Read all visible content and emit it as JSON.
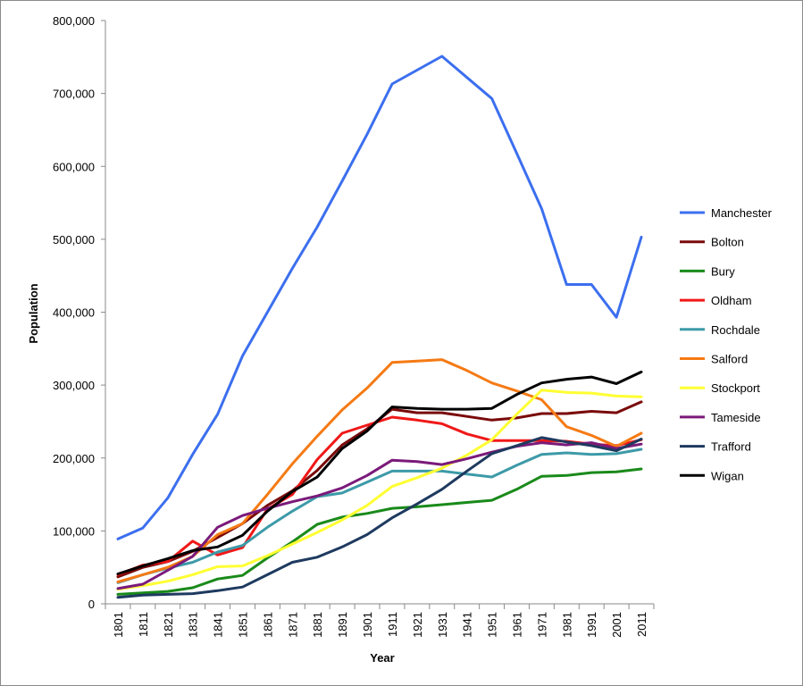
{
  "chart_data": {
    "type": "line",
    "title": "",
    "xlabel": "Year",
    "ylabel": "Population",
    "ylim": [
      0,
      800000
    ],
    "yticks": [
      0,
      100000,
      200000,
      300000,
      400000,
      500000,
      600000,
      700000,
      800000
    ],
    "ytick_labels": [
      "0",
      "100,000",
      "200,000",
      "300,000",
      "400,000",
      "500,000",
      "600,000",
      "700,000",
      "800,000"
    ],
    "grid": false,
    "legend_position": "right",
    "x": [
      "1801",
      "1811",
      "1821",
      "1831",
      "1841",
      "1851",
      "1861",
      "1871",
      "1881",
      "1891",
      "1901",
      "1911",
      "1921",
      "1931",
      "1941",
      "1951",
      "1961",
      "1971",
      "1981",
      "1991",
      "2001",
      "2011"
    ],
    "series": [
      {
        "name": "Manchester",
        "color": "#3c6fef",
        "values": [
          89000,
          104000,
          145000,
          205000,
          260000,
          340000,
          400000,
          460000,
          517000,
          580000,
          644000,
          713000,
          732000,
          751000,
          722000,
          693000,
          618000,
          542000,
          438000,
          438000,
          393000,
          503000
        ]
      },
      {
        "name": "Bolton",
        "color": "#7a0a0a",
        "values": [
          37000,
          50000,
          58000,
          72000,
          91000,
          110000,
          135000,
          155000,
          183000,
          218000,
          240000,
          267000,
          262000,
          262000,
          257000,
          252000,
          255000,
          261000,
          261000,
          264000,
          262000,
          277000
        ]
      },
      {
        "name": "Bury",
        "color": "#1a8a1a",
        "values": [
          13000,
          15000,
          17000,
          22000,
          34000,
          39000,
          63000,
          85000,
          109000,
          119000,
          124000,
          131000,
          133000,
          136000,
          139000,
          142000,
          157000,
          175000,
          176000,
          180000,
          181000,
          185000
        ]
      },
      {
        "name": "Oldham",
        "color": "#f01818",
        "values": [
          40000,
          53000,
          58000,
          86000,
          67000,
          77000,
          130000,
          150000,
          198000,
          234000,
          245000,
          256000,
          252000,
          247000,
          233000,
          224000,
          224000,
          224000,
          223000,
          219000,
          217000,
          225000
        ]
      },
      {
        "name": "Rochdale",
        "color": "#3d9aa8",
        "values": [
          29000,
          40000,
          49000,
          57000,
          71000,
          80000,
          105000,
          127000,
          147000,
          152000,
          167000,
          182000,
          182000,
          182000,
          178000,
          174000,
          190000,
          205000,
          207000,
          205000,
          206000,
          212000
        ]
      },
      {
        "name": "Salford",
        "color": "#f57a14",
        "values": [
          30000,
          40000,
          50000,
          65000,
          95000,
          110000,
          150000,
          192000,
          230000,
          266000,
          296000,
          331000,
          333000,
          335000,
          320000,
          303000,
          292000,
          280000,
          243000,
          231000,
          216000,
          234000
        ]
      },
      {
        "name": "Stockport",
        "color": "#ffff33",
        "values": [
          20000,
          25000,
          31000,
          40000,
          51000,
          52000,
          66000,
          82000,
          98000,
          115000,
          135000,
          161000,
          173000,
          186000,
          204000,
          225000,
          260000,
          293000,
          290000,
          289000,
          285000,
          284000
        ]
      },
      {
        "name": "Tameside",
        "color": "#7a1a7a",
        "values": [
          21000,
          27000,
          46000,
          65000,
          105000,
          121000,
          131000,
          140000,
          148000,
          159000,
          176000,
          197000,
          195000,
          191000,
          199000,
          208000,
          216000,
          221000,
          218000,
          221000,
          213000,
          219000
        ]
      },
      {
        "name": "Trafford",
        "color": "#1e3a5f",
        "values": [
          9000,
          12000,
          13000,
          14000,
          18000,
          23000,
          40000,
          57000,
          64000,
          78000,
          95000,
          118000,
          137000,
          157000,
          182000,
          206000,
          217000,
          228000,
          222000,
          217000,
          210000,
          226000
        ]
      },
      {
        "name": "Wigan",
        "color": "#000000",
        "values": [
          41000,
          52000,
          62000,
          73000,
          78000,
          94000,
          127000,
          154000,
          174000,
          213000,
          237000,
          270000,
          268000,
          267000,
          267000,
          268000,
          287000,
          303000,
          308000,
          311000,
          302000,
          318000
        ]
      }
    ]
  }
}
